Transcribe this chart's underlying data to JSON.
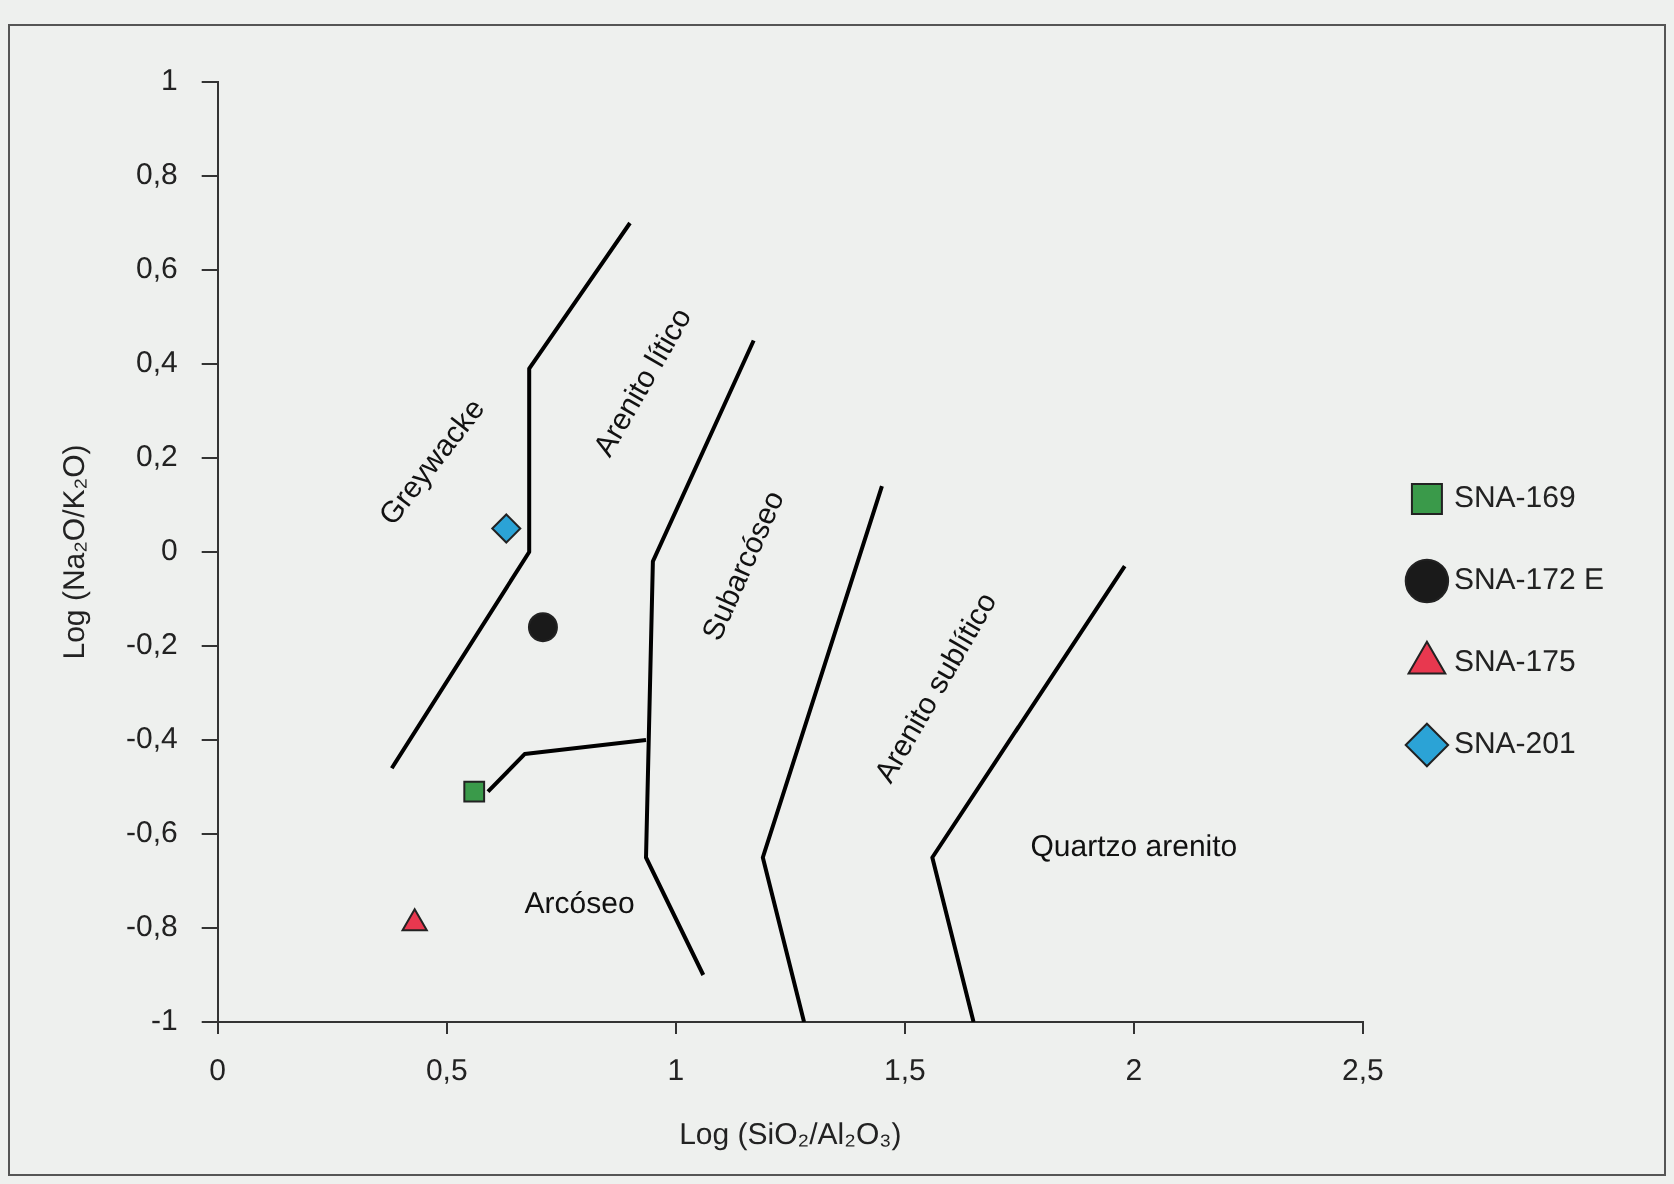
{
  "chart_data": {
    "type": "scatter",
    "xlabel": "Log (SiO₂/Al₂O₃)",
    "ylabel": "Log (Na₂O/K₂O)",
    "xlim": [
      0,
      2.5
    ],
    "xticks": [
      {
        "value": 0,
        "label": "0"
      },
      {
        "value": 0.5,
        "label": "0,5"
      },
      {
        "value": 1,
        "label": "1"
      },
      {
        "value": 1.5,
        "label": "1,5"
      },
      {
        "value": 2,
        "label": "2"
      },
      {
        "value": 2.5,
        "label": "2,5"
      }
    ],
    "ylim": [
      -1,
      1
    ],
    "yticks": [
      {
        "value": -1,
        "label": "-1"
      },
      {
        "value": -0.8,
        "label": "-0,8"
      },
      {
        "value": -0.6,
        "label": "-0,6"
      },
      {
        "value": -0.4,
        "label": "-0,4"
      },
      {
        "value": -0.2,
        "label": "-0,2"
      },
      {
        "value": 0,
        "label": "0"
      },
      {
        "value": 0.2,
        "label": "0,2"
      },
      {
        "value": 0.4,
        "label": "0,4"
      },
      {
        "value": 0.6,
        "label": "0,6"
      },
      {
        "value": 0.8,
        "label": "0,8"
      },
      {
        "value": 1,
        "label": "1"
      }
    ],
    "grid": false,
    "legend": "right",
    "series": [
      {
        "name": "SNA-169",
        "color": "#3a9a4a",
        "marker": "square",
        "x": [
          0.56
        ],
        "values": [
          -0.51
        ]
      },
      {
        "name": "SNA-172 E",
        "color": "#1a1a1a",
        "marker": "circle",
        "x": [
          0.71
        ],
        "values": [
          -0.16
        ]
      },
      {
        "name": "SNA-175",
        "color": "#e8384f",
        "marker": "triangle",
        "x": [
          0.43
        ],
        "values": [
          -0.79
        ]
      },
      {
        "name": "SNA-201",
        "color": "#2ba3d6",
        "marker": "diamond",
        "x": [
          0.63
        ],
        "values": [
          0.05
        ]
      },
      {
        "type": "line",
        "color": "#000000",
        "marker": "none",
        "x": [
          0.38,
          0.68,
          0.68,
          0.9
        ],
        "values": [
          -0.46,
          0.0,
          0.39,
          0.7
        ]
      },
      {
        "type": "line",
        "color": "#000000",
        "marker": "none",
        "x": [
          1.17,
          0.95,
          0.935,
          1.06
        ],
        "values": [
          0.45,
          -0.02,
          -0.65,
          -0.9
        ]
      },
      {
        "type": "line",
        "color": "#000000",
        "marker": "none",
        "x": [
          0.59,
          0.67,
          0.935
        ],
        "values": [
          -0.51,
          -0.43,
          -0.4
        ]
      },
      {
        "type": "line",
        "color": "#000000",
        "marker": "none",
        "x": [
          1.45,
          1.19,
          1.28
        ],
        "values": [
          0.14,
          -0.65,
          -1
        ]
      },
      {
        "type": "line",
        "color": "#000000",
        "marker": "none",
        "x": [
          1.98,
          1.56,
          1.65
        ],
        "values": [
          -0.03,
          -0.65,
          -1
        ]
      }
    ],
    "annotations": [
      "Greywacke",
      "Arenito lítico",
      "Subarcóseo",
      "Arenito sublítico",
      "Arcóseo",
      "Quartzo arenito"
    ]
  }
}
